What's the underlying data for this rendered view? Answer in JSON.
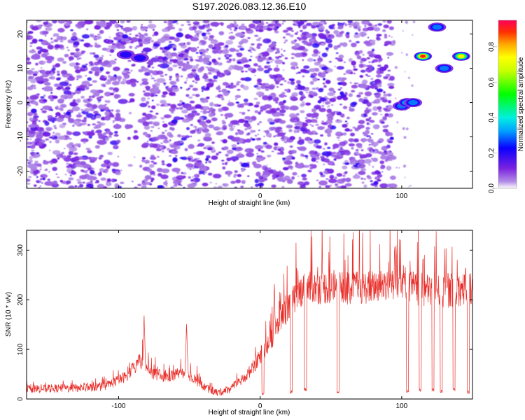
{
  "title": "S197.2026.083.12.36.E10",
  "chart_data": [
    {
      "type": "heatmap",
      "name": "spectrogram",
      "xlabel": "Height of straight line (km)",
      "ylabel": "Frequency (Hz)",
      "xlim": [
        -165,
        150
      ],
      "ylim": [
        -25,
        24
      ],
      "xticks": [
        -100,
        0,
        100
      ],
      "yticks": [
        -20,
        -10,
        0,
        10,
        20
      ],
      "colorbar": {
        "label": "Normalized spectral amplitude",
        "range": [
          0.0,
          0.95
        ],
        "ticks": [
          0.0,
          0.2,
          0.4,
          0.6,
          0.8
        ]
      },
      "noise_band": {
        "x_from": -165,
        "x_to": 94,
        "typical_amplitude": 0.1
      },
      "signal_blobs": [
        {
          "x": -95,
          "y": 14,
          "amplitude": 0.25
        },
        {
          "x": -85,
          "y": 13,
          "amplitude": 0.2
        },
        {
          "x": 100,
          "y": -1,
          "amplitude": 0.35
        },
        {
          "x": 104,
          "y": 0,
          "amplitude": 0.55
        },
        {
          "x": 108,
          "y": 0,
          "amplitude": 0.3
        },
        {
          "x": 115,
          "y": 13.5,
          "amplitude": 0.9
        },
        {
          "x": 125,
          "y": 22,
          "amplitude": 0.3
        },
        {
          "x": 130,
          "y": 10,
          "amplitude": 0.3
        },
        {
          "x": 142,
          "y": 13.5,
          "amplitude": 0.85
        }
      ]
    },
    {
      "type": "line",
      "name": "snr",
      "xlabel": "Height of straight line (km)",
      "ylabel": "SNR (10 * v/v)",
      "xlim": [
        -165,
        150
      ],
      "ylim": [
        0,
        340
      ],
      "xticks": [
        -100,
        0,
        100
      ],
      "yticks": [
        0,
        100,
        200,
        300
      ],
      "color": "#e8302b",
      "envelope": [
        {
          "x": -165,
          "y": 20
        },
        {
          "x": -130,
          "y": 22
        },
        {
          "x": -110,
          "y": 25
        },
        {
          "x": -95,
          "y": 45
        },
        {
          "x": -85,
          "y": 75
        },
        {
          "x": -75,
          "y": 50
        },
        {
          "x": -65,
          "y": 45
        },
        {
          "x": -55,
          "y": 55
        },
        {
          "x": -48,
          "y": 45
        },
        {
          "x": -40,
          "y": 25
        },
        {
          "x": -30,
          "y": 12
        },
        {
          "x": -20,
          "y": 22
        },
        {
          "x": -10,
          "y": 45
        },
        {
          "x": 0,
          "y": 85
        },
        {
          "x": 10,
          "y": 130
        },
        {
          "x": 15,
          "y": 165
        },
        {
          "x": 25,
          "y": 205
        },
        {
          "x": 30,
          "y": 222
        },
        {
          "x": 45,
          "y": 225
        },
        {
          "x": 60,
          "y": 222
        },
        {
          "x": 75,
          "y": 225
        },
        {
          "x": 90,
          "y": 232
        },
        {
          "x": 100,
          "y": 240
        },
        {
          "x": 110,
          "y": 222
        },
        {
          "x": 130,
          "y": 215
        },
        {
          "x": 150,
          "y": 225
        }
      ],
      "spikes": [
        {
          "x": -82,
          "y": 165
        },
        {
          "x": -52,
          "y": 147
        },
        {
          "x": 10,
          "y": 235
        },
        {
          "x": 95,
          "y": 320
        },
        {
          "x": 104,
          "y": 335
        },
        {
          "x": 115,
          "y": 295
        },
        {
          "x": 145,
          "y": 265
        }
      ],
      "dropouts": [
        {
          "x": 2,
          "y": 5
        },
        {
          "x": 22,
          "y": 10
        },
        {
          "x": 32,
          "y": 15
        },
        {
          "x": 55,
          "y": 10
        },
        {
          "x": 104,
          "y": 10
        },
        {
          "x": 113,
          "y": 15
        },
        {
          "x": 122,
          "y": 15
        },
        {
          "x": 128,
          "y": 10
        },
        {
          "x": 137,
          "y": 15
        },
        {
          "x": 147,
          "y": 10
        }
      ]
    }
  ]
}
